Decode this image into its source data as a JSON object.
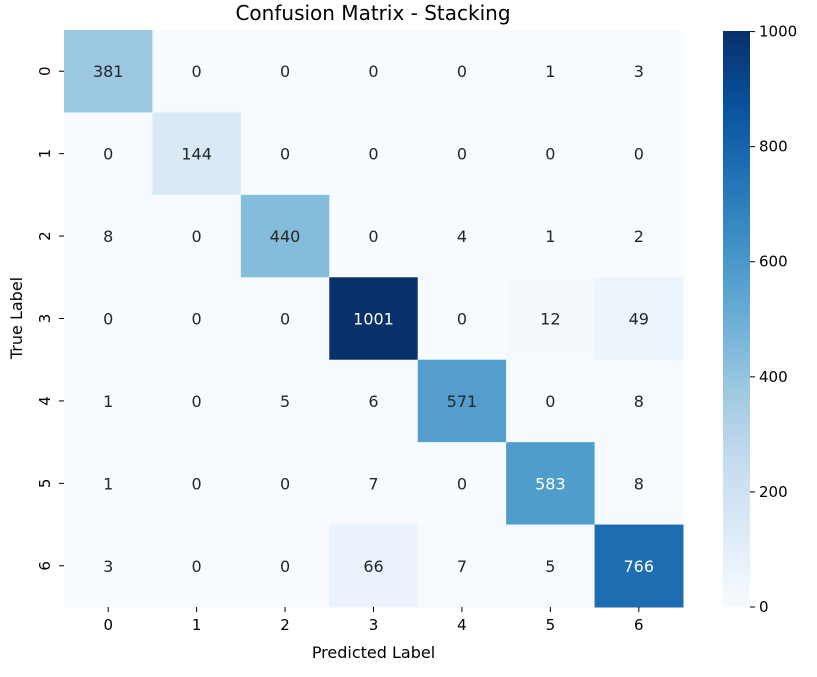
{
  "chart_data": {
    "type": "heatmap",
    "title": "Confusion Matrix - Stacking",
    "xlabel": "Predicted Label",
    "ylabel": "True Label",
    "x_ticks": [
      "0",
      "1",
      "2",
      "3",
      "4",
      "5",
      "6"
    ],
    "y_ticks": [
      "0",
      "1",
      "2",
      "3",
      "4",
      "5",
      "6"
    ],
    "matrix": [
      [
        381,
        0,
        0,
        0,
        0,
        1,
        3
      ],
      [
        0,
        144,
        0,
        0,
        0,
        0,
        0
      ],
      [
        8,
        0,
        440,
        0,
        4,
        1,
        2
      ],
      [
        0,
        0,
        0,
        1001,
        0,
        12,
        49
      ],
      [
        1,
        0,
        5,
        6,
        571,
        0,
        8
      ],
      [
        1,
        0,
        0,
        7,
        0,
        583,
        8
      ],
      [
        3,
        0,
        0,
        66,
        7,
        5,
        766
      ]
    ],
    "colormap": "Blues",
    "vmin": 0,
    "vmax": 1001,
    "colorbar_ticks": [
      "0",
      "200",
      "400",
      "600",
      "800",
      "1000"
    ],
    "colorbar_tick_values": [
      0,
      200,
      400,
      600,
      800,
      1000
    ],
    "annotations": true
  }
}
